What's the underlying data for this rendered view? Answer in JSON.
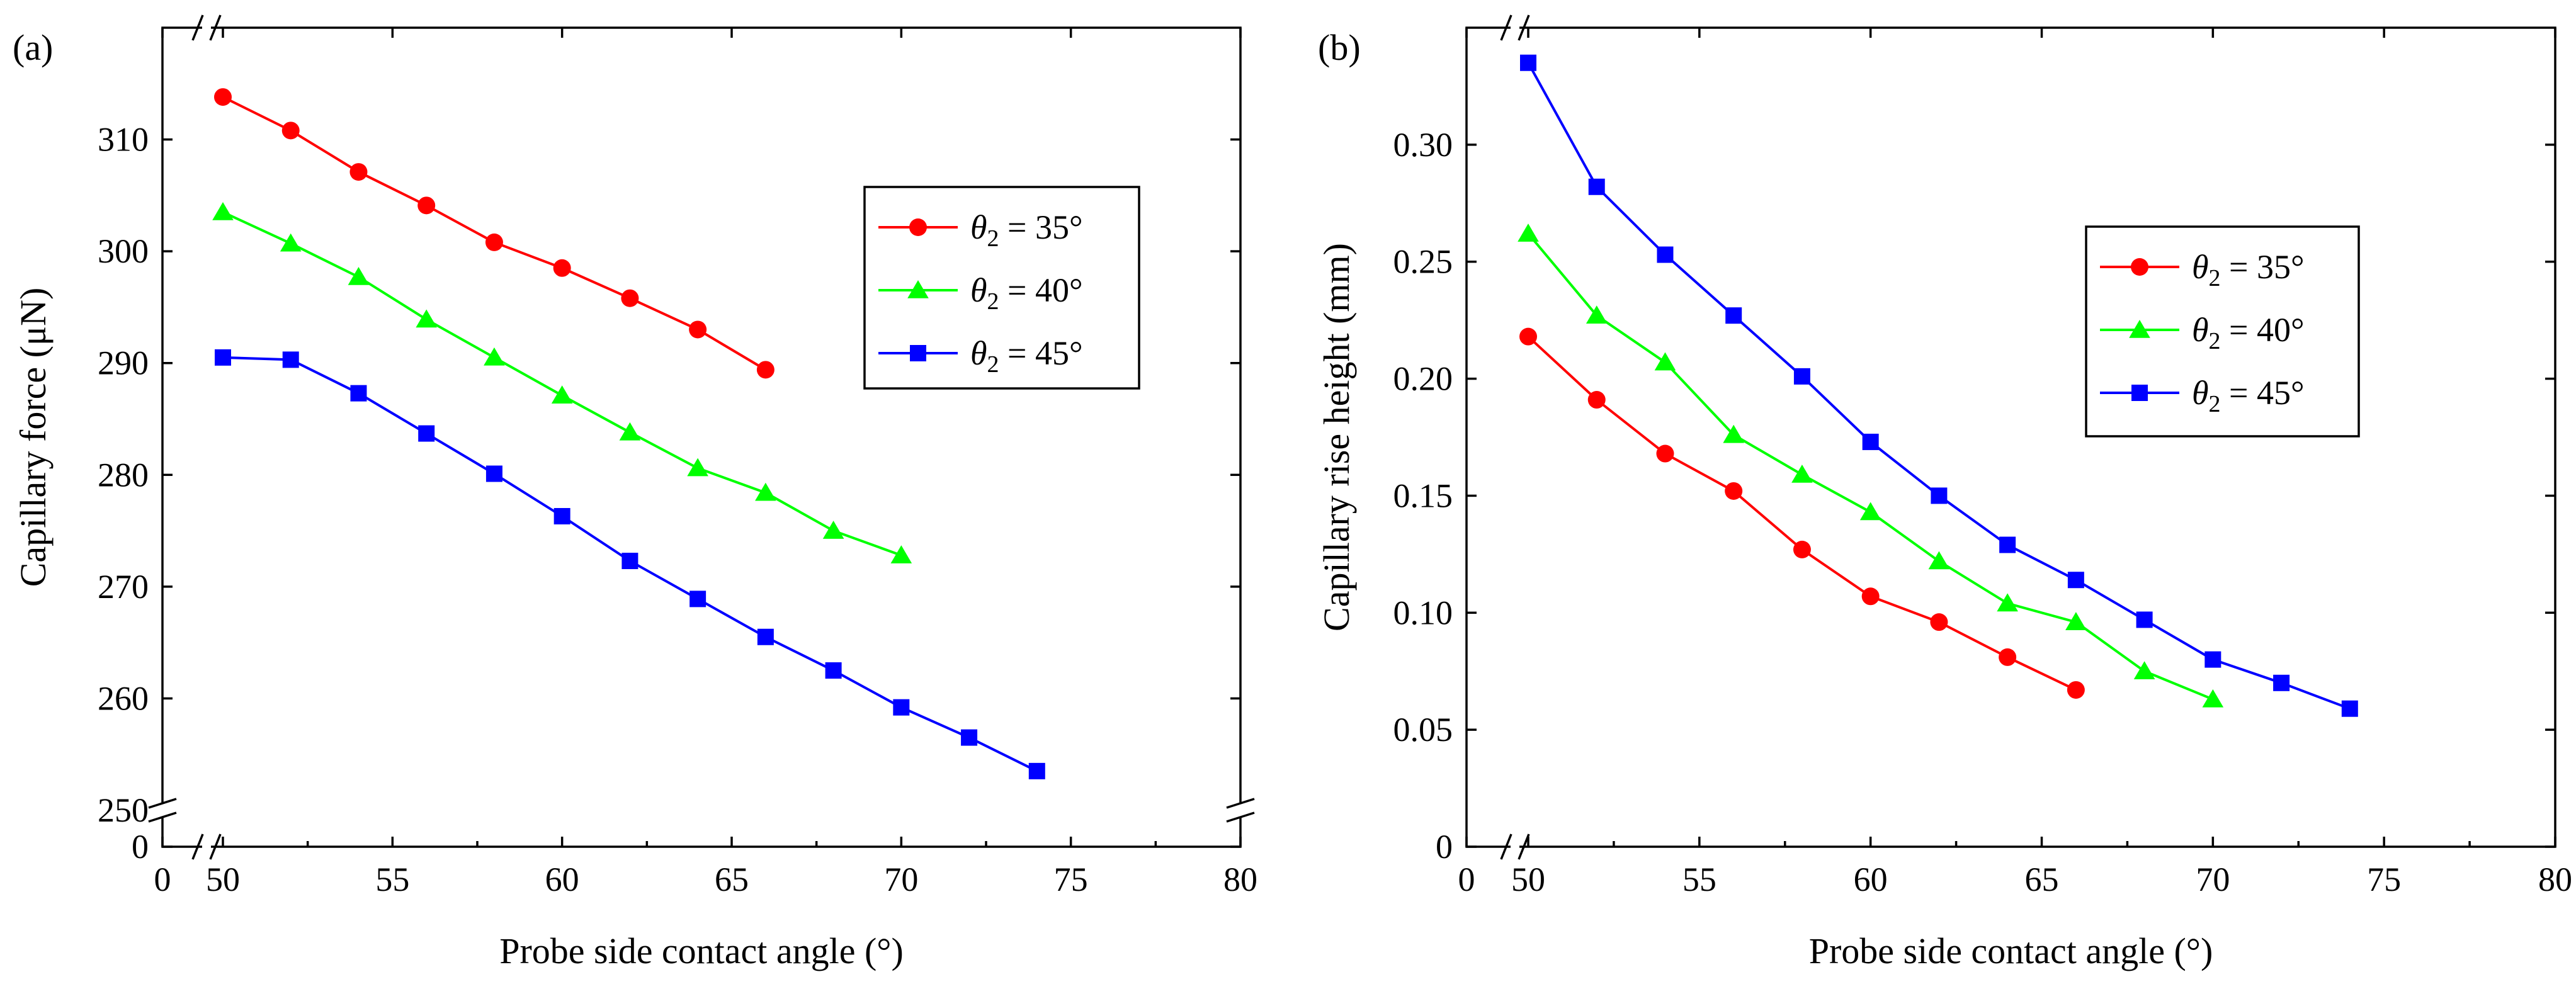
{
  "chart_data": [
    {
      "panel_label": "(a)",
      "type": "line",
      "xlabel": "Probe side contact angle (°)",
      "ylabel": "Capillary force (μN)",
      "xlim": [
        0,
        80
      ],
      "ylim": [
        0,
        320
      ],
      "axis_break": {
        "x": [
          0,
          50
        ],
        "y": [
          0,
          250
        ]
      },
      "x_ticks": [
        "0",
        "50",
        "55",
        "60",
        "65",
        "70",
        "75",
        "80"
      ],
      "y_ticks": [
        "0",
        "250",
        "260",
        "270",
        "280",
        "290",
        "300",
        "310"
      ],
      "legend_position": "upper-right-center",
      "series": [
        {
          "name": "35°",
          "symbol": "θ",
          "subscript": "2",
          "prefix": " = ",
          "color": "#ff0000",
          "marker": "circle",
          "x": [
            50,
            52,
            54,
            56,
            58,
            60,
            62,
            64,
            66
          ],
          "y": [
            313.8,
            310.8,
            307.1,
            304.1,
            300.8,
            298.5,
            295.8,
            293.0,
            289.4
          ]
        },
        {
          "name": "40°",
          "symbol": "θ",
          "subscript": "2",
          "prefix": " = ",
          "color": "#00ff00",
          "marker": "triangle",
          "x": [
            50,
            52,
            54,
            56,
            58,
            60,
            62,
            64,
            66,
            68,
            70
          ],
          "y": [
            303.5,
            300.7,
            297.7,
            293.9,
            290.5,
            287.1,
            283.8,
            280.6,
            278.4,
            275.0,
            272.8
          ]
        },
        {
          "name": "45°",
          "symbol": "θ",
          "subscript": "2",
          "prefix": " = ",
          "color": "#0000ff",
          "marker": "square",
          "x": [
            50,
            52,
            54,
            56,
            58,
            60,
            62,
            64,
            66,
            68,
            70,
            72,
            74
          ],
          "y": [
            290.5,
            290.3,
            287.3,
            283.7,
            280.1,
            276.3,
            272.3,
            268.9,
            265.5,
            262.5,
            259.2,
            256.5,
            253.5
          ]
        }
      ]
    },
    {
      "panel_label": "(b)",
      "type": "line",
      "xlabel": "Probe side contact angle (°)",
      "ylabel": "Capillary rise height (mm)",
      "xlim": [
        0,
        80
      ],
      "ylim": [
        0,
        0.35
      ],
      "axis_break": {
        "x": [
          0,
          50
        ]
      },
      "x_ticks": [
        "0",
        "50",
        "55",
        "60",
        "65",
        "70",
        "75",
        "80"
      ],
      "y_ticks": [
        "0",
        "0.05",
        "0.10",
        "0.15",
        "0.20",
        "0.25",
        "0.30"
      ],
      "legend_position": "right-center",
      "series": [
        {
          "name": "35°",
          "symbol": "θ",
          "subscript": "2",
          "prefix": " = ",
          "color": "#ff0000",
          "marker": "circle",
          "x": [
            50,
            52,
            54,
            56,
            58,
            60,
            62,
            64,
            66
          ],
          "y": [
            0.218,
            0.191,
            0.168,
            0.152,
            0.127,
            0.107,
            0.096,
            0.081,
            0.067
          ]
        },
        {
          "name": "40°",
          "symbol": "θ",
          "subscript": "2",
          "prefix": " = ",
          "color": "#00ff00",
          "marker": "triangle",
          "x": [
            50,
            52,
            54,
            56,
            58,
            60,
            62,
            64,
            66,
            68,
            70
          ],
          "y": [
            0.262,
            0.227,
            0.207,
            0.176,
            0.159,
            0.143,
            0.122,
            0.104,
            0.096,
            0.075,
            0.063
          ]
        },
        {
          "name": "45°",
          "symbol": "θ",
          "subscript": "2",
          "prefix": " = ",
          "color": "#0000ff",
          "marker": "square",
          "x": [
            50,
            52,
            54,
            56,
            58,
            60,
            62,
            64,
            66,
            68,
            70,
            72,
            74
          ],
          "y": [
            0.335,
            0.282,
            0.253,
            0.227,
            0.201,
            0.173,
            0.15,
            0.129,
            0.114,
            0.097,
            0.08,
            0.07,
            0.059
          ]
        }
      ]
    }
  ]
}
